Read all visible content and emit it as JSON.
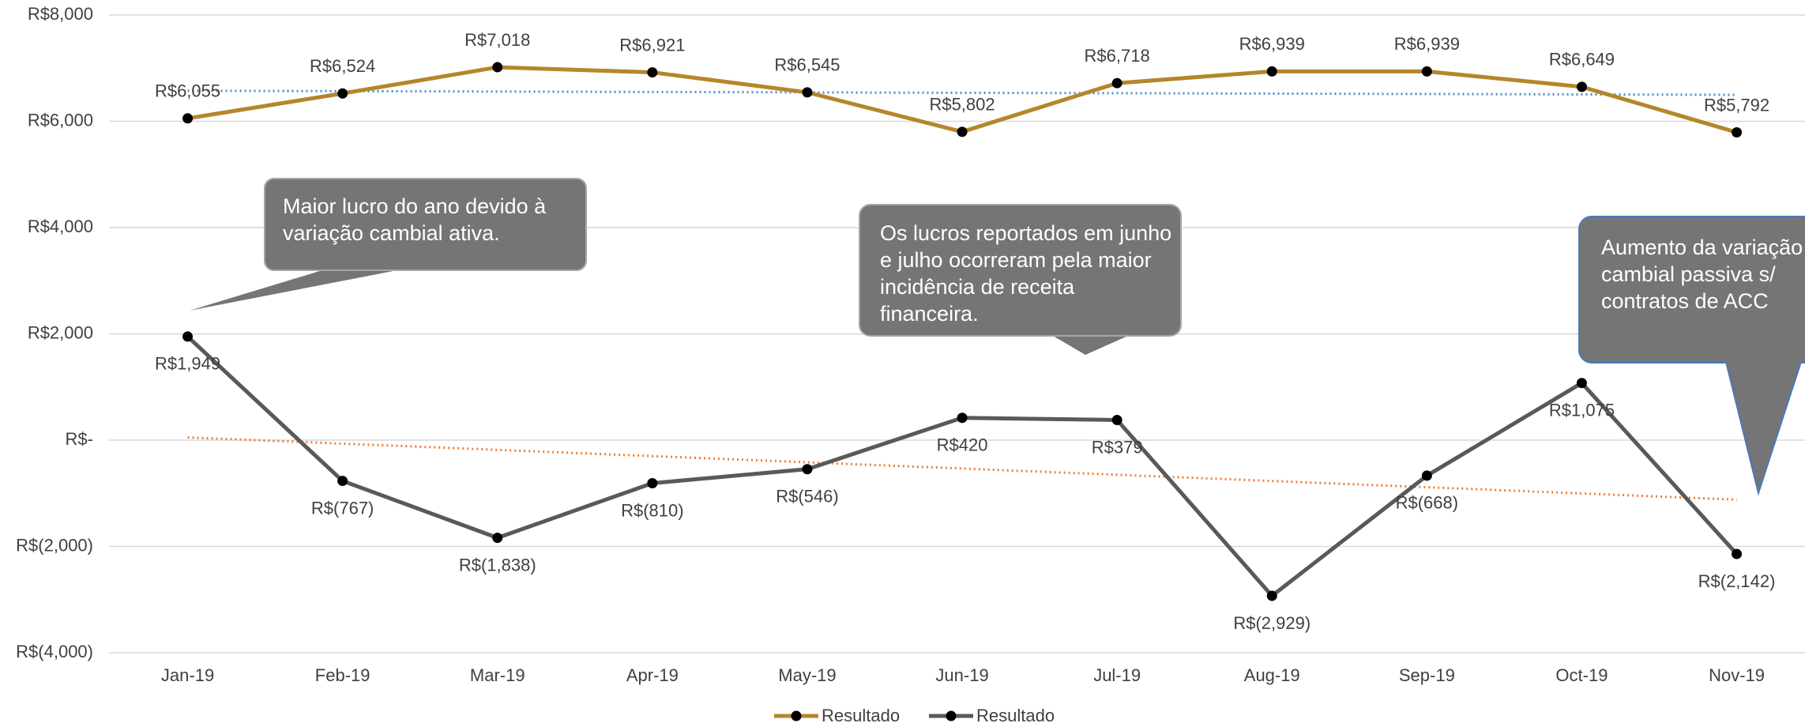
{
  "chart_data": {
    "type": "line",
    "categories": [
      "Jan-19",
      "Feb-19",
      "Mar-19",
      "Apr-19",
      "May-19",
      "Jun-19",
      "Jul-19",
      "Aug-19",
      "Sep-19",
      "Oct-19",
      "Nov-19"
    ],
    "series": [
      {
        "name": "Resultado",
        "color": "#b5862a",
        "trendline_color": "#4a8cc7",
        "values": [
          6055,
          6524,
          7018,
          6921,
          6545,
          5802,
          6718,
          6939,
          6939,
          6649,
          5792
        ],
        "value_labels": [
          "R$6,055",
          "R$6,524",
          "R$7,018",
          "R$6,921",
          "R$6,545",
          "R$5,802",
          "R$6,718",
          "R$6,939",
          "R$6,939",
          "R$6,649",
          "R$5,792"
        ]
      },
      {
        "name": "Resultado",
        "color": "#595959",
        "trendline_color": "#ed7d31",
        "values": [
          1949,
          -767,
          -1838,
          -810,
          -546,
          420,
          379,
          -2929,
          -668,
          1075,
          -2142
        ],
        "value_labels": [
          "R$1,949",
          "R$(767)",
          "R$(1,838)",
          "R$(810)",
          "R$(546)",
          "R$420",
          "R$379",
          "R$(2,929)",
          "R$(668)",
          "R$1,075",
          "R$(2,142)"
        ]
      }
    ],
    "ylim": [
      -4000,
      8000
    ],
    "yticks": [
      {
        "value": -4000,
        "label": "R$(4,000)"
      },
      {
        "value": -2000,
        "label": "R$(2,000)"
      },
      {
        "value": 0,
        "label": "R$-"
      },
      {
        "value": 2000,
        "label": "R$2,000"
      },
      {
        "value": 4000,
        "label": "R$4,000"
      },
      {
        "value": 6000,
        "label": "R$6,000"
      },
      {
        "value": 8000,
        "label": "R$8,000"
      }
    ],
    "grid": true,
    "trendline": "linear",
    "legend": "bottom",
    "annotations": [
      "Maior lucro do ano devido à variação cambial ativa.",
      "Os lucros reportados em junho e julho ocorreram pela maior incidência de receita financeira.",
      "Aumento da variação cambial passiva s/ contratos de ACC"
    ]
  }
}
